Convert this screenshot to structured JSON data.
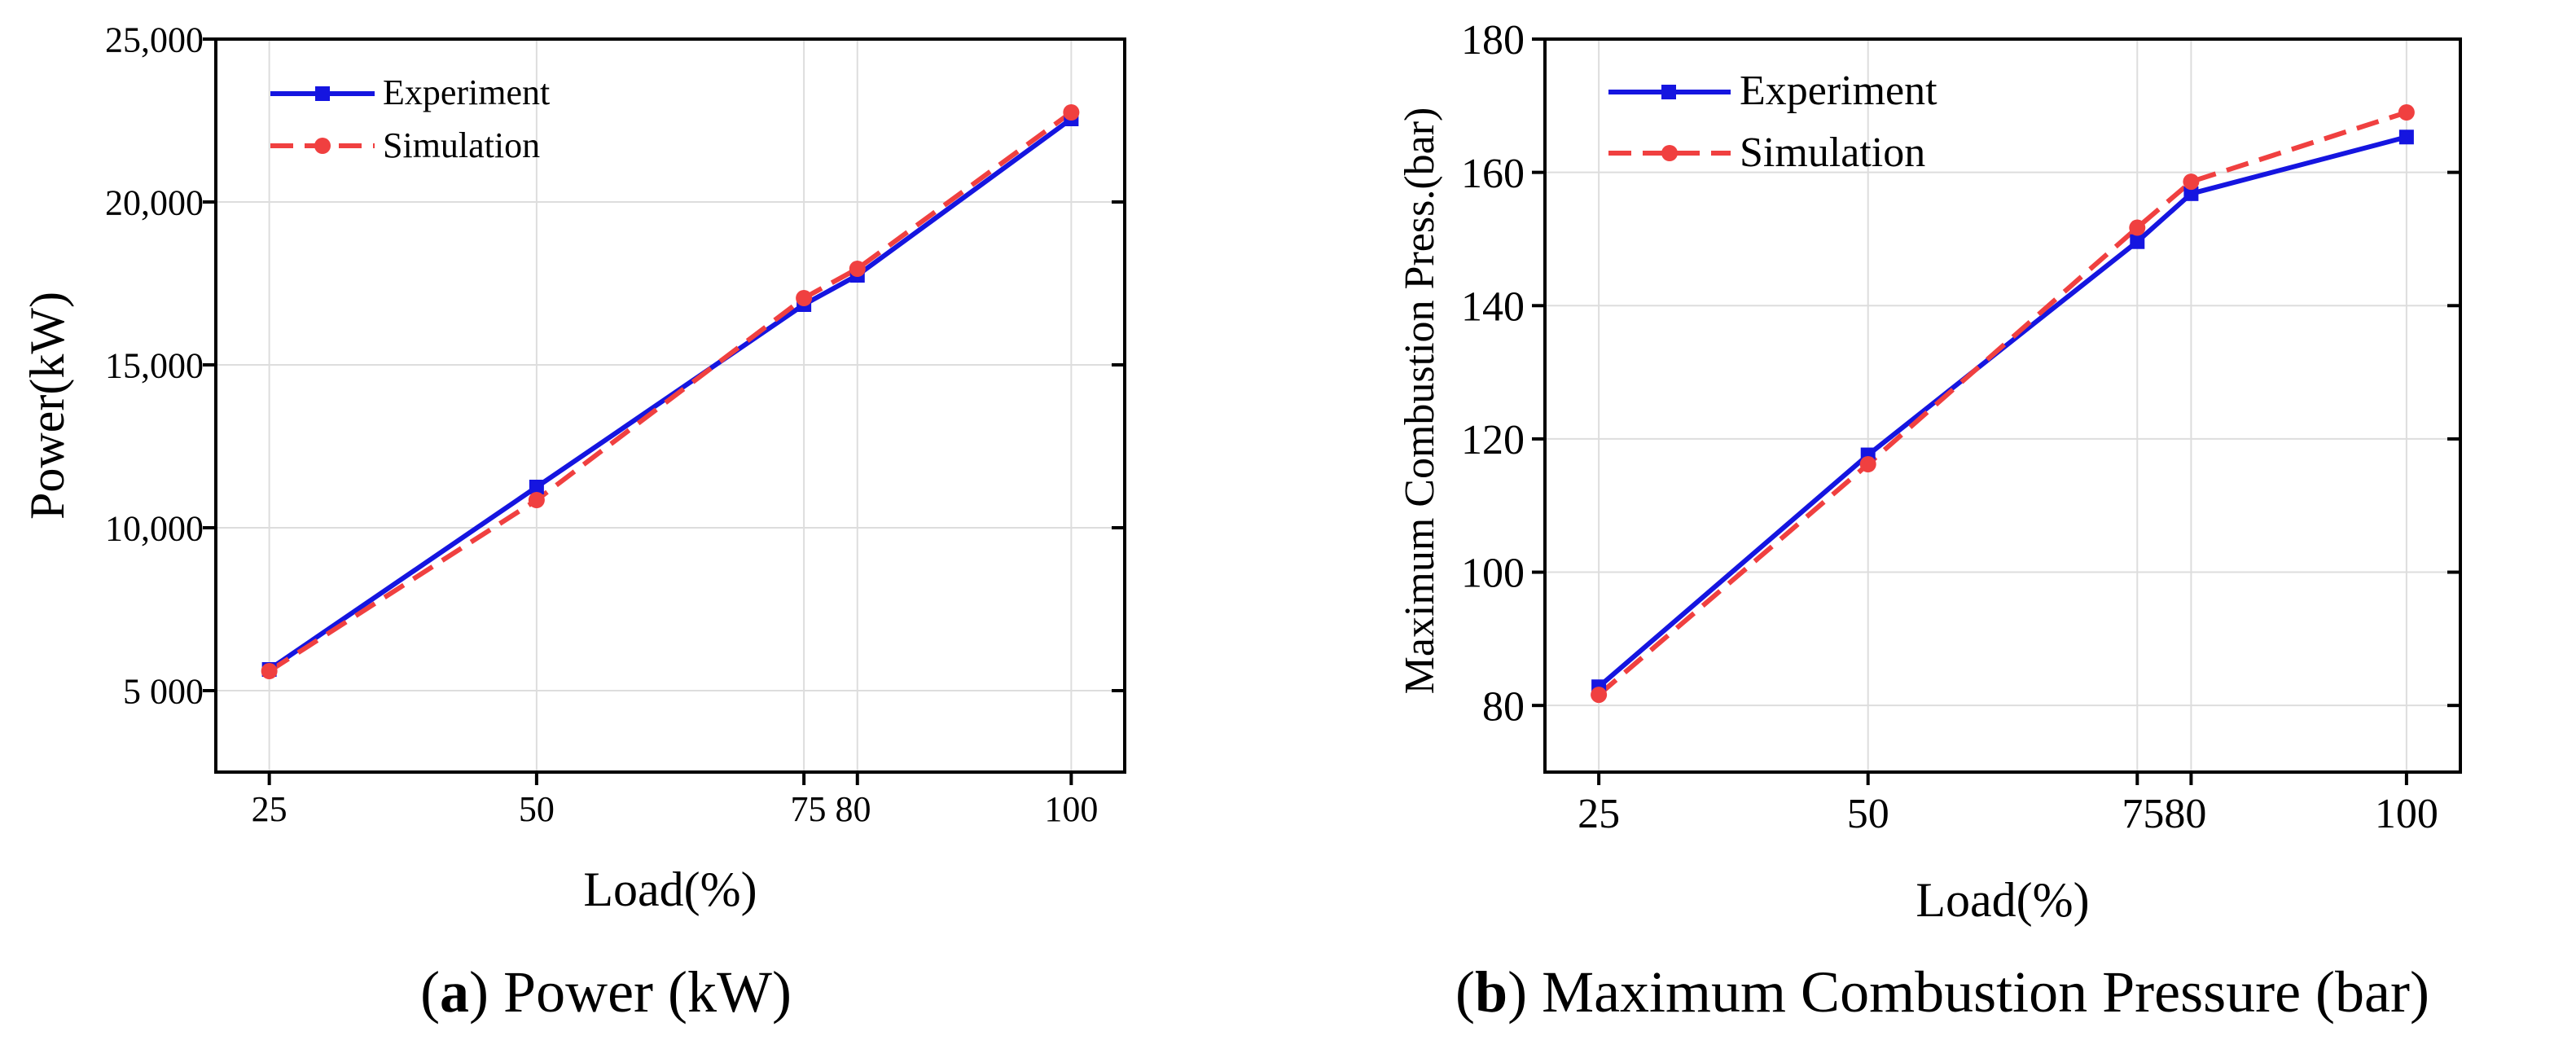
{
  "chart_data": [
    {
      "id": "a",
      "type": "line",
      "xlabel": "Load(%)",
      "ylabel": "Power(kW)",
      "xlim": [
        20,
        105
      ],
      "ylim": [
        2500,
        25000
      ],
      "xticks": [
        25,
        50,
        75,
        80,
        100
      ],
      "xtick_labels": [
        "25",
        "50",
        "75 80",
        "100"
      ],
      "yticks": [
        5000,
        10000,
        15000,
        20000,
        25000
      ],
      "ytick_labels": [
        "5 000",
        "10,000",
        "15,000",
        "20,000",
        "25,000"
      ],
      "grid": true,
      "legend_position": "top-left",
      "series": [
        {
          "name": "Experiment",
          "style": "solid",
          "marker": "square",
          "color": "#1515e0",
          "x": [
            25,
            50,
            75,
            80,
            100
          ],
          "y": [
            5650,
            11250,
            16850,
            17750,
            22550
          ]
        },
        {
          "name": "Simulation",
          "style": "dashed",
          "marker": "circle",
          "color": "#f04040",
          "x": [
            25,
            50,
            75,
            80,
            100
          ],
          "y": [
            5600,
            10850,
            17050,
            17950,
            22750
          ]
        }
      ],
      "caption_bold": "a",
      "caption_text": "Power (kW)"
    },
    {
      "id": "b",
      "type": "line",
      "xlabel": "Load(%)",
      "ylabel": "Maximum Combustion Press.(bar)",
      "xlim": [
        20,
        105
      ],
      "ylim": [
        70,
        180
      ],
      "xticks": [
        25,
        50,
        75,
        80,
        100
      ],
      "xtick_labels": [
        "25",
        "50",
        "7580",
        "100"
      ],
      "yticks": [
        80,
        100,
        120,
        140,
        160,
        180
      ],
      "ytick_labels": [
        "80",
        "100",
        "120",
        "140",
        "160",
        "180"
      ],
      "grid": true,
      "legend_position": "top-left",
      "series": [
        {
          "name": "Experiment",
          "style": "solid",
          "marker": "square",
          "color": "#1515e0",
          "x": [
            25,
            50,
            75,
            80,
            100
          ],
          "y": [
            82.8,
            117.6,
            149.6,
            156.8,
            165.3
          ]
        },
        {
          "name": "Simulation",
          "style": "dashed",
          "marker": "circle",
          "color": "#f04040",
          "x": [
            25,
            50,
            75,
            80,
            100
          ],
          "y": [
            81.6,
            116.2,
            151.7,
            158.6,
            169.0
          ]
        }
      ],
      "caption_bold": "b",
      "caption_text": "Maximum Combustion Pressure (bar)"
    }
  ]
}
